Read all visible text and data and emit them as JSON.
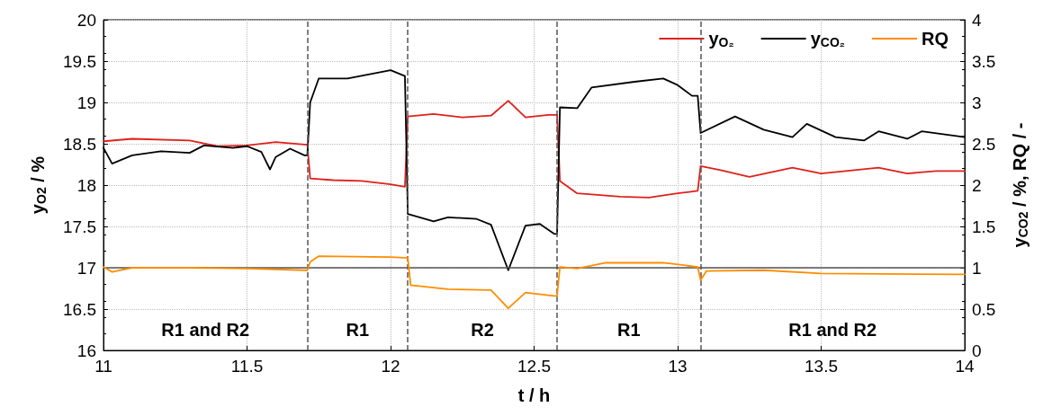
{
  "chart_data": {
    "type": "line",
    "xlabel": "t / h",
    "ylabel": "y$_{O2}$ / %",
    "y2label": "y$_{CO2}$ / %, RQ / -",
    "xlim": [
      11,
      14
    ],
    "xticks": [
      11,
      11.5,
      12,
      12.5,
      13,
      13.5,
      14
    ],
    "ylim": [
      16,
      20
    ],
    "yticks": [
      16,
      16.5,
      17,
      17.5,
      18,
      18.5,
      19,
      19.5,
      20
    ],
    "y2lim": [
      0,
      4
    ],
    "y2ticks": [
      0,
      0.5,
      1,
      1.5,
      2,
      2.5,
      3,
      3.5,
      4
    ],
    "grid": true,
    "legend": "top right",
    "marker": "none",
    "line_style": "solid",
    "series": [
      {
        "name": "y$_{O₂}$",
        "color": "#e0201b",
        "x": [
          11,
          11.1,
          11.3,
          11.4,
          11.5,
          11.6,
          11.7,
          11.71,
          11.72,
          11.8,
          11.9,
          12,
          12.05,
          12.06,
          12.15,
          12.25,
          12.35,
          12.41,
          12.47,
          12.55,
          12.58,
          12.59,
          12.65,
          12.8,
          12.9,
          13,
          13.07,
          13.08,
          13.15,
          13.25,
          13.4,
          13.5,
          13.7,
          13.8,
          13.9,
          14
        ],
        "values": [
          18.53,
          18.56,
          18.54,
          18.47,
          18.48,
          18.52,
          18.49,
          18.49,
          18.08,
          18.06,
          18.05,
          18.01,
          17.98,
          18.83,
          18.86,
          18.82,
          18.84,
          19.02,
          18.82,
          18.85,
          18.85,
          18.05,
          17.9,
          17.86,
          17.85,
          17.9,
          17.93,
          18.23,
          18.18,
          18.1,
          18.21,
          18.14,
          18.21,
          18.14,
          18.17,
          18.17
        ]
      },
      {
        "name": "y$_{CO₂}$",
        "color": "#000000",
        "axis": "y2",
        "x": [
          11,
          11.03,
          11.1,
          11.2,
          11.3,
          11.35,
          11.45,
          11.5,
          11.55,
          11.58,
          11.6,
          11.65,
          11.7,
          11.71,
          11.72,
          11.75,
          11.85,
          12,
          12.05,
          12.06,
          12.15,
          12.2,
          12.3,
          12.35,
          12.41,
          12.47,
          12.52,
          12.57,
          12.58,
          12.59,
          12.65,
          12.7,
          12.85,
          12.95,
          13,
          13.05,
          13.07,
          13.08,
          13.2,
          13.3,
          13.4,
          13.45,
          13.55,
          13.65,
          13.7,
          13.8,
          13.85,
          14
        ],
        "values": [
          2.45,
          2.26,
          2.36,
          2.41,
          2.39,
          2.48,
          2.45,
          2.47,
          2.4,
          2.19,
          2.34,
          2.44,
          2.36,
          2.36,
          3.0,
          3.29,
          3.29,
          3.39,
          3.32,
          1.65,
          1.56,
          1.61,
          1.59,
          1.52,
          0.97,
          1.51,
          1.53,
          1.41,
          1.41,
          2.94,
          2.93,
          3.18,
          3.25,
          3.29,
          3.21,
          3.08,
          3.08,
          2.63,
          2.83,
          2.67,
          2.58,
          2.74,
          2.58,
          2.54,
          2.65,
          2.56,
          2.65,
          2.58
        ]
      },
      {
        "name": "RQ",
        "color": "#ff8c00",
        "axis": "y2",
        "x": [
          11,
          11.03,
          11.1,
          11.3,
          11.5,
          11.7,
          11.71,
          11.72,
          11.75,
          12,
          12.05,
          12.06,
          12.07,
          12.2,
          12.35,
          12.41,
          12.47,
          12.57,
          12.58,
          12.59,
          12.65,
          12.75,
          12.95,
          13.07,
          13.08,
          13.1,
          13.3,
          13.5,
          14
        ],
        "values": [
          1.01,
          0.95,
          1.0,
          1.0,
          0.99,
          0.97,
          0.97,
          1.07,
          1.14,
          1.13,
          1.12,
          1.12,
          0.79,
          0.74,
          0.73,
          0.51,
          0.7,
          0.66,
          0.66,
          1.01,
          0.99,
          1.06,
          1.06,
          1.01,
          0.85,
          0.96,
          0.97,
          0.93,
          0.92
        ]
      }
    ],
    "ref_lines": [
      {
        "axis": "x",
        "value": 11.71,
        "color": "#555555",
        "line_style": "dashed"
      },
      {
        "axis": "x",
        "value": 12.06,
        "color": "#555555",
        "line_style": "dashed"
      },
      {
        "axis": "x",
        "value": 12.58,
        "color": "#555555",
        "line_style": "dashed"
      },
      {
        "axis": "x",
        "value": 13.08,
        "color": "#555555",
        "line_style": "dashed"
      },
      {
        "axis": "y2",
        "value": 1,
        "color": "#555555",
        "line_style": "solid"
      }
    ],
    "annotations": [
      "R1 and R2",
      "R1",
      "R2",
      "R1",
      "R1 and R2"
    ]
  }
}
